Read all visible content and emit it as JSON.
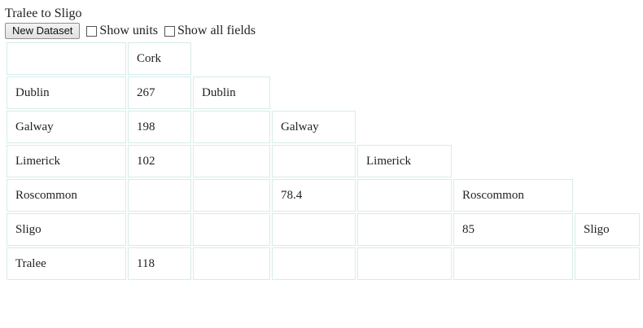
{
  "title": "Tralee to Sligo",
  "controls": {
    "new_dataset_label": "New Dataset",
    "show_units_label": "Show units",
    "show_all_fields_label": "Show all fields"
  },
  "matrix": {
    "rows": [
      [
        "",
        "Cork"
      ],
      [
        "Dublin",
        "267",
        "Dublin"
      ],
      [
        "Galway",
        "198",
        "",
        "Galway"
      ],
      [
        "Limerick",
        "102",
        "",
        "",
        "Limerick"
      ],
      [
        "Roscommon",
        "",
        "",
        "78.4",
        "",
        "Roscommon"
      ],
      [
        "Sligo",
        "",
        "",
        "",
        "",
        "85",
        "Sligo"
      ],
      [
        "Tralee",
        "118",
        "",
        "",
        "",
        "",
        ""
      ]
    ]
  }
}
